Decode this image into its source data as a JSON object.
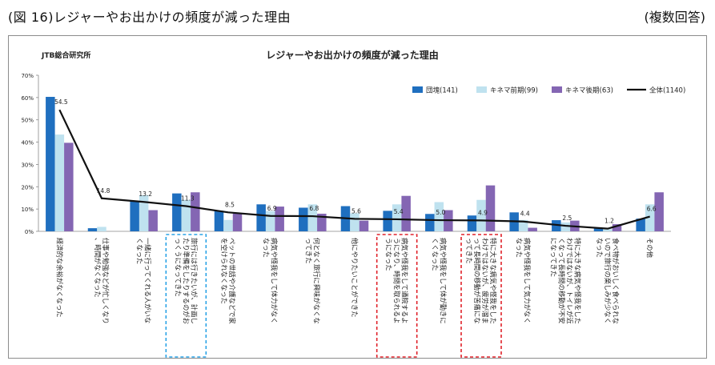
{
  "header": {
    "title": "(図 16)レジャーやお出かけの頻度が減った理由",
    "note": "(複数回答)"
  },
  "chart_data": {
    "type": "bar",
    "source": "JTB総合研究所",
    "title": "レジャーやお出かけの頻度が減った理由",
    "ylim": [
      0,
      70
    ],
    "yticks": [
      "0%",
      "10%",
      "20%",
      "30%",
      "40%",
      "50%",
      "60%",
      "70%"
    ],
    "categories": [
      "経済的な余裕がなくなった",
      "仕事や勉強などが忙しくなり、時間がなくなった",
      "一緒に行ってくれる人がいなくなった",
      "旅行には行きたいが、計画したり準備をしたりするのがおっくうになってきた",
      "ペットの世話や介護などで家を空けられなくなった",
      "病気や怪我をして体力がなくなった",
      "何となく旅行に興味がなくなってきた",
      "他にやりたいことができた",
      "病気や怪我をして通院するようになり、時間を取られるようになった",
      "病気や怪我をして体が動きにくくなった",
      "特に大きな病気や怪我をしたわけではないが、疲労が溜まって長時間の移動が苦痛になってきた",
      "病気や怪我をして気力がなくなった",
      "特に大きな病気や怪我をしたわけではないが、トイレが近くなって長時間の移動が不安になってきた",
      "食べ物がおいしく食べられないので旅行の楽しみが少なくなった",
      "その他"
    ],
    "series": [
      {
        "name": "団塊(141)",
        "color": "#1f6fbf",
        "values": [
          60.3,
          1.4,
          13.5,
          17.0,
          9.2,
          12.1,
          10.6,
          11.3,
          9.2,
          7.8,
          7.1,
          8.5,
          5.0,
          1.4,
          5.7
        ]
      },
      {
        "name": "キネマ前期(99)",
        "color": "#bfe2ef",
        "values": [
          43.4,
          2.0,
          16.2,
          14.1,
          5.1,
          9.1,
          12.1,
          8.1,
          12.1,
          13.1,
          14.1,
          5.1,
          4.0,
          1.0,
          12.1
        ]
      },
      {
        "name": "キネマ後期(63)",
        "color": "#8466b3",
        "values": [
          39.7,
          0.0,
          9.5,
          17.5,
          7.9,
          11.1,
          7.9,
          4.8,
          15.9,
          9.5,
          20.6,
          1.6,
          4.8,
          3.2,
          17.5
        ]
      },
      {
        "name": "全体(1140)",
        "color": "#111111",
        "type": "line",
        "values": [
          54.5,
          14.8,
          13.2,
          11.3,
          8.5,
          6.9,
          6.8,
          5.6,
          5.4,
          5.0,
          4.9,
          4.4,
          2.5,
          1.2,
          6.6
        ],
        "labels": [
          "54.5",
          "14.8",
          "13.2",
          "11.3",
          "8.5",
          "6.9",
          "6.8",
          "5.6",
          "5.4",
          "5.0",
          "4.9",
          "4.4",
          "2.5",
          "1.2",
          "6.6"
        ]
      }
    ],
    "highlights": [
      {
        "category_index": 3,
        "style": "blue-dashed"
      },
      {
        "category_index": 8,
        "style": "red-dashed"
      },
      {
        "category_index": 10,
        "style": "red-dashed"
      }
    ],
    "legend": "top-right",
    "grid": false
  }
}
